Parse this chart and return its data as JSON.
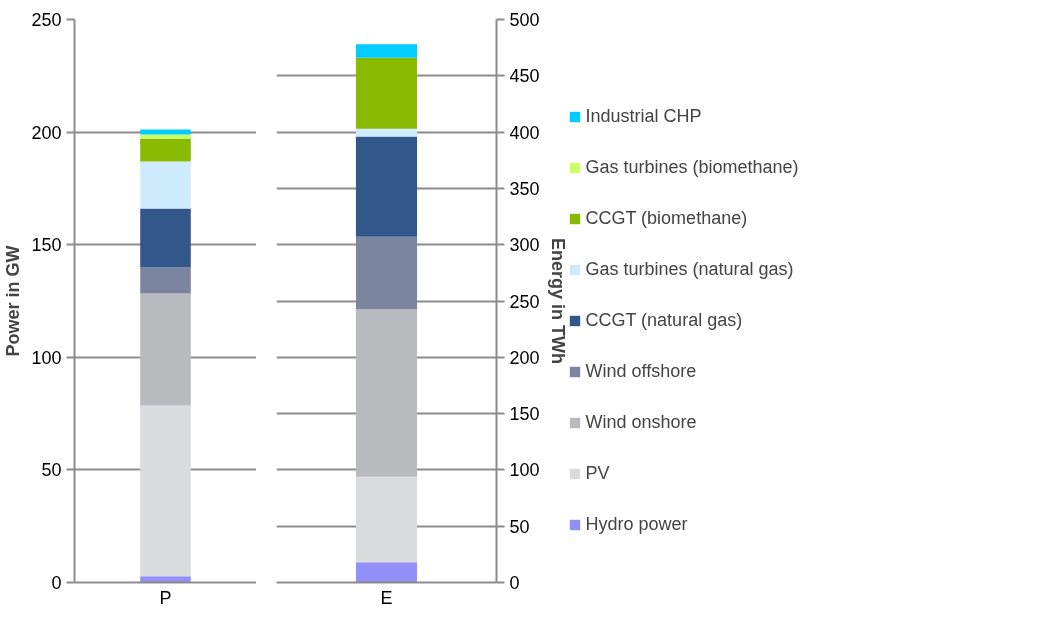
{
  "chart_data": [
    {
      "type": "bar",
      "stacked": true,
      "categories": [
        "P"
      ],
      "ylabel": "Power in GW",
      "ylim": [
        0,
        250
      ],
      "yticks": [
        0,
        50,
        100,
        150,
        200,
        250
      ],
      "grid": "y",
      "legend": false,
      "series": [
        {
          "color": "#9090f8",
          "values": [
            2.8
          ]
        },
        {
          "color": "#dadbdd",
          "values": [
            75.8
          ]
        },
        {
          "color": "#b9babe",
          "values": [
            49.7
          ]
        },
        {
          "color": "#7b859f",
          "values": [
            11.6
          ]
        },
        {
          "color": "#31578b",
          "values": [
            26.2
          ]
        },
        {
          "color": "#cdebfd",
          "values": [
            20.8
          ]
        },
        {
          "color": "#89b900",
          "values": [
            10.3
          ]
        },
        {
          "color": "#ccff66",
          "values": [
            1.7
          ]
        },
        {
          "color": "#00ccff",
          "values": [
            2.3
          ]
        }
      ]
    },
    {
      "type": "bar",
      "stacked": true,
      "categories": [
        "E"
      ],
      "ylabel": "Energy in TWh",
      "ylim": [
        0,
        500
      ],
      "yticks": [
        0,
        50,
        100,
        150,
        200,
        250,
        300,
        350,
        400,
        450,
        500
      ],
      "grid": "y",
      "legend": "right",
      "series": [
        {
          "name": "Hydro power",
          "color": "#9090f8",
          "values": [
            18
          ]
        },
        {
          "name": "PV",
          "color": "#dadbdd",
          "values": [
            76
          ]
        },
        {
          "name": "Wind onshore",
          "color": "#b9babe",
          "values": [
            149
          ]
        },
        {
          "name": "Wind offshore",
          "color": "#7b859f",
          "values": [
            64
          ]
        },
        {
          "name": "CCGT (natural gas)",
          "color": "#31578b",
          "values": [
            89
          ]
        },
        {
          "name": "Gas turbines (natural gas)",
          "color": "#cdebfd",
          "values": [
            7
          ]
        },
        {
          "name": "CCGT (biomethane)",
          "color": "#89b900",
          "values": [
            63
          ]
        },
        {
          "name": "Gas turbines (biomethane)",
          "color": "#ccff66",
          "values": [
            0
          ]
        },
        {
          "name": "Industrial CHP",
          "color": "#00ccff",
          "values": [
            12
          ]
        }
      ]
    }
  ]
}
